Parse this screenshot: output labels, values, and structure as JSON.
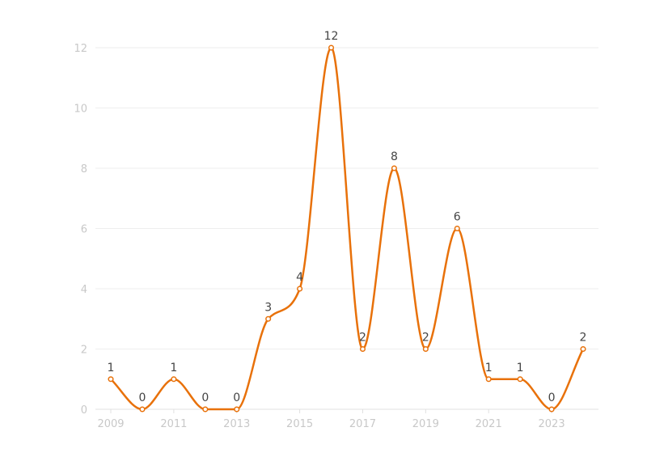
{
  "chart_data": {
    "type": "line",
    "title": "",
    "xlabel": "",
    "ylabel": "",
    "x": [
      2009,
      2010,
      2011,
      2012,
      2013,
      2014,
      2015,
      2016,
      2017,
      2018,
      2019,
      2020,
      2021,
      2022,
      2023,
      2024
    ],
    "x_tick_labels": [
      "2009",
      "2011",
      "2013",
      "2015",
      "2017",
      "2019",
      "2021",
      "2023"
    ],
    "y_tick_labels": [
      "0",
      "2",
      "4",
      "6",
      "8",
      "10",
      "12"
    ],
    "ylim": [
      0,
      12
    ],
    "grid": true,
    "smooth": true,
    "series": [
      {
        "color": "#e8710a",
        "values": [
          1,
          0,
          1,
          0,
          0,
          3,
          4,
          12,
          2,
          8,
          2,
          6,
          1,
          1,
          0,
          2
        ],
        "value_labels": [
          "1",
          "0",
          "1",
          "0",
          "0",
          "3",
          "4",
          "12",
          "2",
          "8",
          "2",
          "6",
          "1",
          "1",
          "0",
          "2"
        ]
      }
    ]
  }
}
